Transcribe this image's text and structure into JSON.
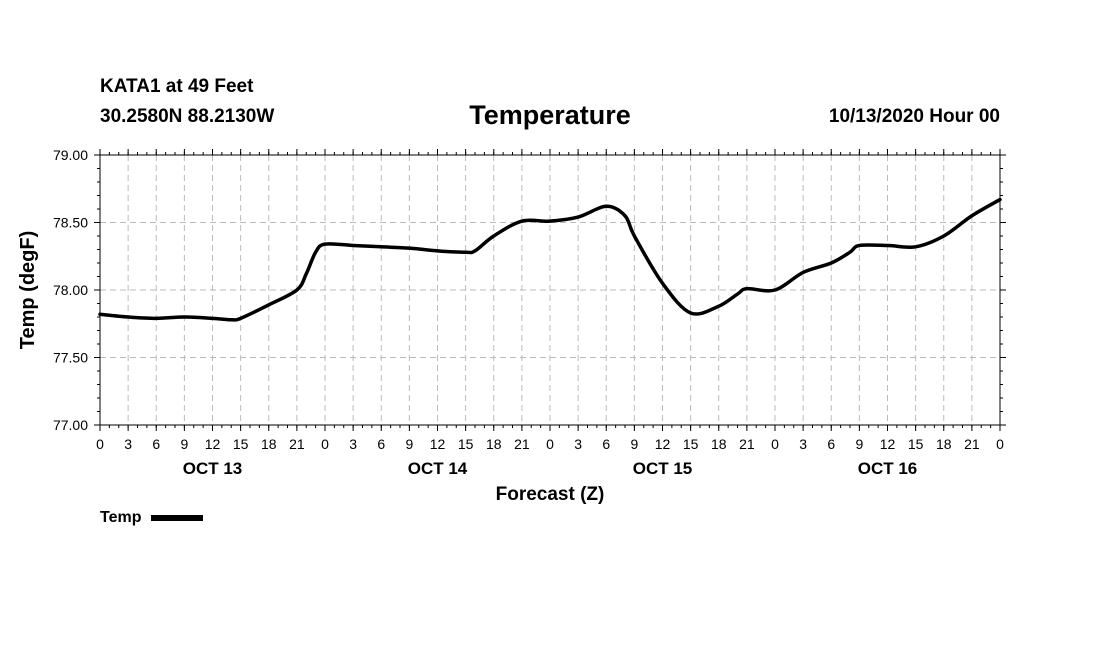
{
  "header": {
    "station": "KATA1 at 49 Feet",
    "coords": "30.2580N 88.2130W",
    "title": "Temperature",
    "issued": "10/13/2020 Hour 00"
  },
  "chart_data": {
    "type": "line",
    "title": "Temperature",
    "xlabel": "Forecast (Z)",
    "ylabel": "Temp (degF)",
    "ylim": [
      77.0,
      79.0
    ],
    "xlim": [
      0,
      96
    ],
    "y_ticks": [
      77.0,
      77.5,
      78.0,
      78.5,
      79.0
    ],
    "y_tick_labels": [
      "77.00",
      "77.50",
      "78.00",
      "78.50",
      "79.00"
    ],
    "x_tick_hours": [
      0,
      3,
      6,
      9,
      12,
      15,
      18,
      21,
      24,
      27,
      30,
      33,
      36,
      39,
      42,
      45,
      48,
      51,
      54,
      57,
      60,
      63,
      66,
      69,
      72,
      75,
      78,
      81,
      84,
      87,
      90,
      93,
      96
    ],
    "x_tick_labels": [
      "0",
      "3",
      "6",
      "9",
      "12",
      "15",
      "18",
      "21",
      "0",
      "3",
      "6",
      "9",
      "12",
      "15",
      "18",
      "21",
      "0",
      "3",
      "6",
      "9",
      "12",
      "15",
      "18",
      "21",
      "0",
      "3",
      "6",
      "9",
      "12",
      "15",
      "18",
      "21",
      "0"
    ],
    "day_labels": [
      {
        "label": "OCT 13",
        "hour": 12
      },
      {
        "label": "OCT 14",
        "hour": 36
      },
      {
        "label": "OCT 15",
        "hour": 60
      },
      {
        "label": "OCT 16",
        "hour": 84
      }
    ],
    "grid": true,
    "legend": "bottom-left",
    "series": [
      {
        "name": "Temp",
        "color": "#000000",
        "x": [
          0,
          3,
          6,
          9,
          12,
          14,
          15,
          18,
          21,
          22,
          23,
          24,
          27,
          30,
          33,
          36,
          39,
          40,
          42,
          45,
          48,
          51,
          54,
          56,
          57,
          60,
          63,
          66,
          68,
          69,
          72,
          75,
          78,
          80,
          81,
          84,
          87,
          90,
          93,
          96
        ],
        "y": [
          77.82,
          77.8,
          77.79,
          77.8,
          77.79,
          77.78,
          77.79,
          77.89,
          78.0,
          78.12,
          78.28,
          78.34,
          78.33,
          78.32,
          78.31,
          78.29,
          78.28,
          78.29,
          78.4,
          78.51,
          78.51,
          78.54,
          78.62,
          78.55,
          78.4,
          78.05,
          77.83,
          77.88,
          77.97,
          78.01,
          78.0,
          78.13,
          78.2,
          78.28,
          78.33,
          78.33,
          78.32,
          78.4,
          78.55,
          78.67
        ]
      }
    ]
  },
  "legend": {
    "label": "Temp",
    "color": "#000000"
  }
}
